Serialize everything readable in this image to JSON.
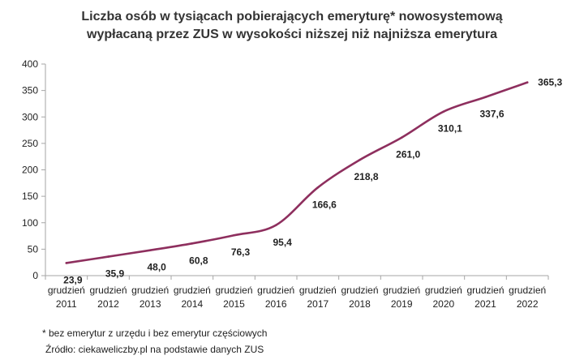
{
  "chart_data": {
    "type": "line",
    "title": [
      "Liczba osób w tysiącach pobierających emeryturę* nowosystemową",
      "wypłacaną przez ZUS w wysokości niższej niż najniższa emerytura"
    ],
    "categories": [
      [
        "grudzień",
        "2011"
      ],
      [
        "grudzień",
        "2012"
      ],
      [
        "grudzień",
        "2013"
      ],
      [
        "grudzień",
        "2014"
      ],
      [
        "grudzień",
        "2015"
      ],
      [
        "grudzień",
        "2016"
      ],
      [
        "grudzień",
        "2017"
      ],
      [
        "grudzień",
        "2018"
      ],
      [
        "grudzień",
        "2019"
      ],
      [
        "grudzień",
        "2020"
      ],
      [
        "grudzień",
        "2021"
      ],
      [
        "grudzień",
        "2022"
      ]
    ],
    "values": [
      23.9,
      35.9,
      48.0,
      60.8,
      76.3,
      95.4,
      166.6,
      218.8,
      261.0,
      310.1,
      337.6,
      365.3
    ],
    "data_labels": [
      "23,9",
      "35,9",
      "48,0",
      "60,8",
      "76,3",
      "95,4",
      "166,6",
      "218,8",
      "261,0",
      "310,1",
      "337,6",
      "365,3"
    ],
    "ylim": [
      0,
      400
    ],
    "yticks": [
      0,
      50,
      100,
      150,
      200,
      250,
      300,
      350,
      400
    ],
    "grid": false,
    "line_color": "#8e2f5e",
    "axis_color": "#a6a6a6"
  },
  "footnote": "* bez emerytur z urzędu i bez emerytur częściowych",
  "source": "Źródło: ciekaweliczby.pl na podstawie danych ZUS"
}
